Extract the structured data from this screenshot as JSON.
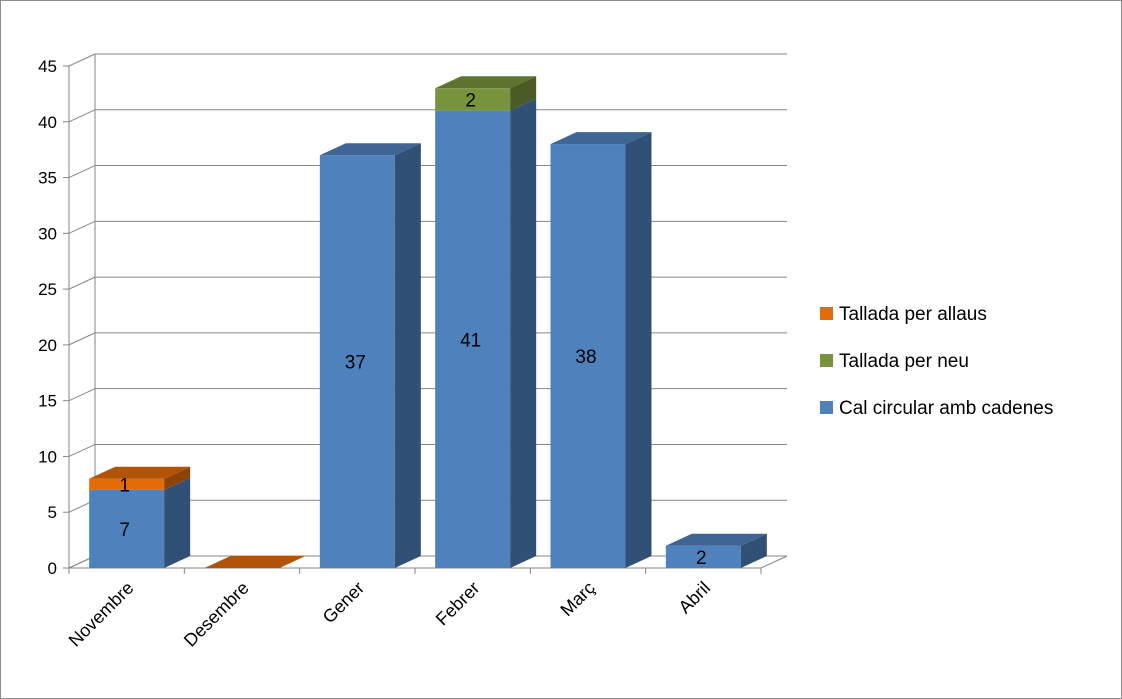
{
  "chart_data": {
    "type": "bar",
    "stacked": true,
    "three_d": true,
    "categories": [
      "Novembre",
      "Desembre",
      "Gener",
      "Febrer",
      "Març",
      "Abril"
    ],
    "series": [
      {
        "name": "Cal circular amb cadenes",
        "values": [
          7,
          0,
          37,
          41,
          38,
          2
        ],
        "labels": [
          "7",
          "",
          "37",
          "41",
          "38",
          "2"
        ],
        "color": "#4f81bd"
      },
      {
        "name": "Tallada per neu",
        "values": [
          0,
          0,
          0,
          2,
          0,
          0
        ],
        "labels": [
          "",
          "",
          "",
          "2",
          "",
          ""
        ],
        "color": "#77933c"
      },
      {
        "name": "Tallada per allaus",
        "values": [
          1,
          0,
          0,
          0,
          0,
          0
        ],
        "labels": [
          "1",
          "",
          "",
          "",
          "",
          ""
        ],
        "color": "#e36c09"
      }
    ],
    "ylim": [
      0,
      45
    ],
    "yticks": [
      0,
      5,
      10,
      15,
      20,
      25,
      30,
      35,
      40,
      45
    ],
    "grid": true,
    "legend_position": "right",
    "legend_order": [
      "Tallada per allaus",
      "Tallada per neu",
      "Cal circular amb cadenes"
    ]
  }
}
